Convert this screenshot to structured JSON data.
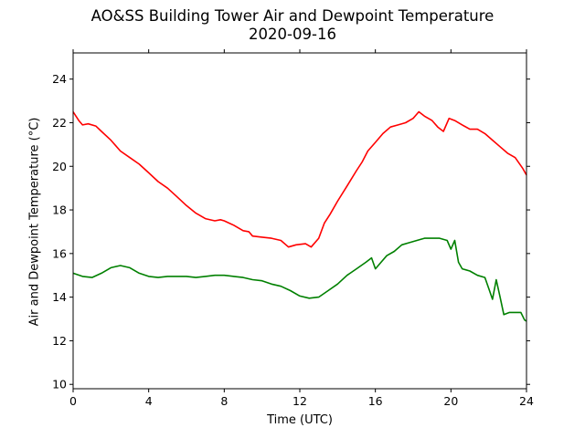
{
  "chart_data": {
    "type": "line",
    "title": "AO&SS Building Tower Air and Dewpoint Temperature",
    "subtitle": "2020-09-16",
    "xlabel": "Time (UTC)",
    "ylabel": "Air and Dewpoint Temperature (°C)",
    "xlim": [
      0,
      24
    ],
    "ylim": [
      9.8,
      25.2
    ],
    "xticks": [
      "0",
      "4",
      "8",
      "12",
      "16",
      "20",
      "24"
    ],
    "xtick_values": [
      0,
      4,
      8,
      12,
      16,
      20,
      24
    ],
    "yticks": [
      "10",
      "12",
      "14",
      "16",
      "18",
      "20",
      "22",
      "24"
    ],
    "ytick_values": [
      10,
      12,
      14,
      16,
      18,
      20,
      22,
      24
    ],
    "grid": false,
    "legend": "none",
    "series": [
      {
        "color": "#ff0000",
        "points": [
          [
            0,
            22.5
          ],
          [
            0.3,
            22.1
          ],
          [
            0.5,
            21.9
          ],
          [
            0.8,
            21.95
          ],
          [
            1.2,
            21.85
          ],
          [
            1.5,
            21.6
          ],
          [
            2,
            21.2
          ],
          [
            2.5,
            20.7
          ],
          [
            3,
            20.4
          ],
          [
            3.5,
            20.1
          ],
          [
            4,
            19.7
          ],
          [
            4.5,
            19.3
          ],
          [
            5,
            19.0
          ],
          [
            5.5,
            18.6
          ],
          [
            6,
            18.2
          ],
          [
            6.5,
            17.85
          ],
          [
            7,
            17.6
          ],
          [
            7.5,
            17.5
          ],
          [
            7.8,
            17.55
          ],
          [
            8,
            17.5
          ],
          [
            8.5,
            17.3
          ],
          [
            9,
            17.05
          ],
          [
            9.3,
            17.0
          ],
          [
            9.5,
            16.8
          ],
          [
            10,
            16.75
          ],
          [
            10.5,
            16.7
          ],
          [
            11,
            16.6
          ],
          [
            11.4,
            16.3
          ],
          [
            11.8,
            16.4
          ],
          [
            12.3,
            16.45
          ],
          [
            12.6,
            16.3
          ],
          [
            13,
            16.7
          ],
          [
            13.3,
            17.4
          ],
          [
            13.6,
            17.8
          ],
          [
            14,
            18.4
          ],
          [
            14.5,
            19.1
          ],
          [
            15,
            19.8
          ],
          [
            15.3,
            20.2
          ],
          [
            15.6,
            20.7
          ],
          [
            16,
            21.1
          ],
          [
            16.4,
            21.5
          ],
          [
            16.8,
            21.8
          ],
          [
            17.2,
            21.9
          ],
          [
            17.6,
            22.0
          ],
          [
            18,
            22.2
          ],
          [
            18.3,
            22.5
          ],
          [
            18.6,
            22.3
          ],
          [
            19,
            22.1
          ],
          [
            19.3,
            21.8
          ],
          [
            19.6,
            21.6
          ],
          [
            19.9,
            22.2
          ],
          [
            20.2,
            22.1
          ],
          [
            20.6,
            21.9
          ],
          [
            21,
            21.7
          ],
          [
            21.4,
            21.7
          ],
          [
            21.8,
            21.5
          ],
          [
            22.2,
            21.2
          ],
          [
            22.6,
            20.9
          ],
          [
            23,
            20.6
          ],
          [
            23.4,
            20.4
          ],
          [
            23.8,
            19.9
          ],
          [
            24,
            19.6
          ]
        ]
      },
      {
        "color": "#008000",
        "points": [
          [
            0,
            15.1
          ],
          [
            0.5,
            14.95
          ],
          [
            1,
            14.9
          ],
          [
            1.5,
            15.1
          ],
          [
            2,
            15.35
          ],
          [
            2.5,
            15.45
          ],
          [
            3,
            15.35
          ],
          [
            3.5,
            15.1
          ],
          [
            4,
            14.95
          ],
          [
            4.5,
            14.9
          ],
          [
            5,
            14.95
          ],
          [
            5.5,
            14.95
          ],
          [
            6,
            14.95
          ],
          [
            6.5,
            14.9
          ],
          [
            7,
            14.95
          ],
          [
            7.5,
            15.0
          ],
          [
            8,
            15.0
          ],
          [
            8.5,
            14.95
          ],
          [
            9,
            14.9
          ],
          [
            9.5,
            14.8
          ],
          [
            10,
            14.75
          ],
          [
            10.5,
            14.6
          ],
          [
            11,
            14.5
          ],
          [
            11.5,
            14.3
          ],
          [
            12,
            14.05
          ],
          [
            12.5,
            13.95
          ],
          [
            13,
            14.0
          ],
          [
            13.5,
            14.3
          ],
          [
            14,
            14.6
          ],
          [
            14.5,
            15.0
          ],
          [
            15,
            15.3
          ],
          [
            15.5,
            15.6
          ],
          [
            15.8,
            15.8
          ],
          [
            16,
            15.3
          ],
          [
            16.3,
            15.6
          ],
          [
            16.6,
            15.9
          ],
          [
            17,
            16.1
          ],
          [
            17.4,
            16.4
          ],
          [
            17.8,
            16.5
          ],
          [
            18.2,
            16.6
          ],
          [
            18.6,
            16.7
          ],
          [
            19,
            16.7
          ],
          [
            19.4,
            16.7
          ],
          [
            19.8,
            16.6
          ],
          [
            20,
            16.2
          ],
          [
            20.2,
            16.6
          ],
          [
            20.4,
            15.6
          ],
          [
            20.6,
            15.3
          ],
          [
            21,
            15.2
          ],
          [
            21.4,
            15.0
          ],
          [
            21.8,
            14.9
          ],
          [
            22,
            14.4
          ],
          [
            22.2,
            13.9
          ],
          [
            22.4,
            14.8
          ],
          [
            22.6,
            14.0
          ],
          [
            22.8,
            13.2
          ],
          [
            23.1,
            13.3
          ],
          [
            23.4,
            13.3
          ],
          [
            23.7,
            13.3
          ],
          [
            23.9,
            12.95
          ],
          [
            24,
            12.9
          ]
        ]
      }
    ]
  }
}
